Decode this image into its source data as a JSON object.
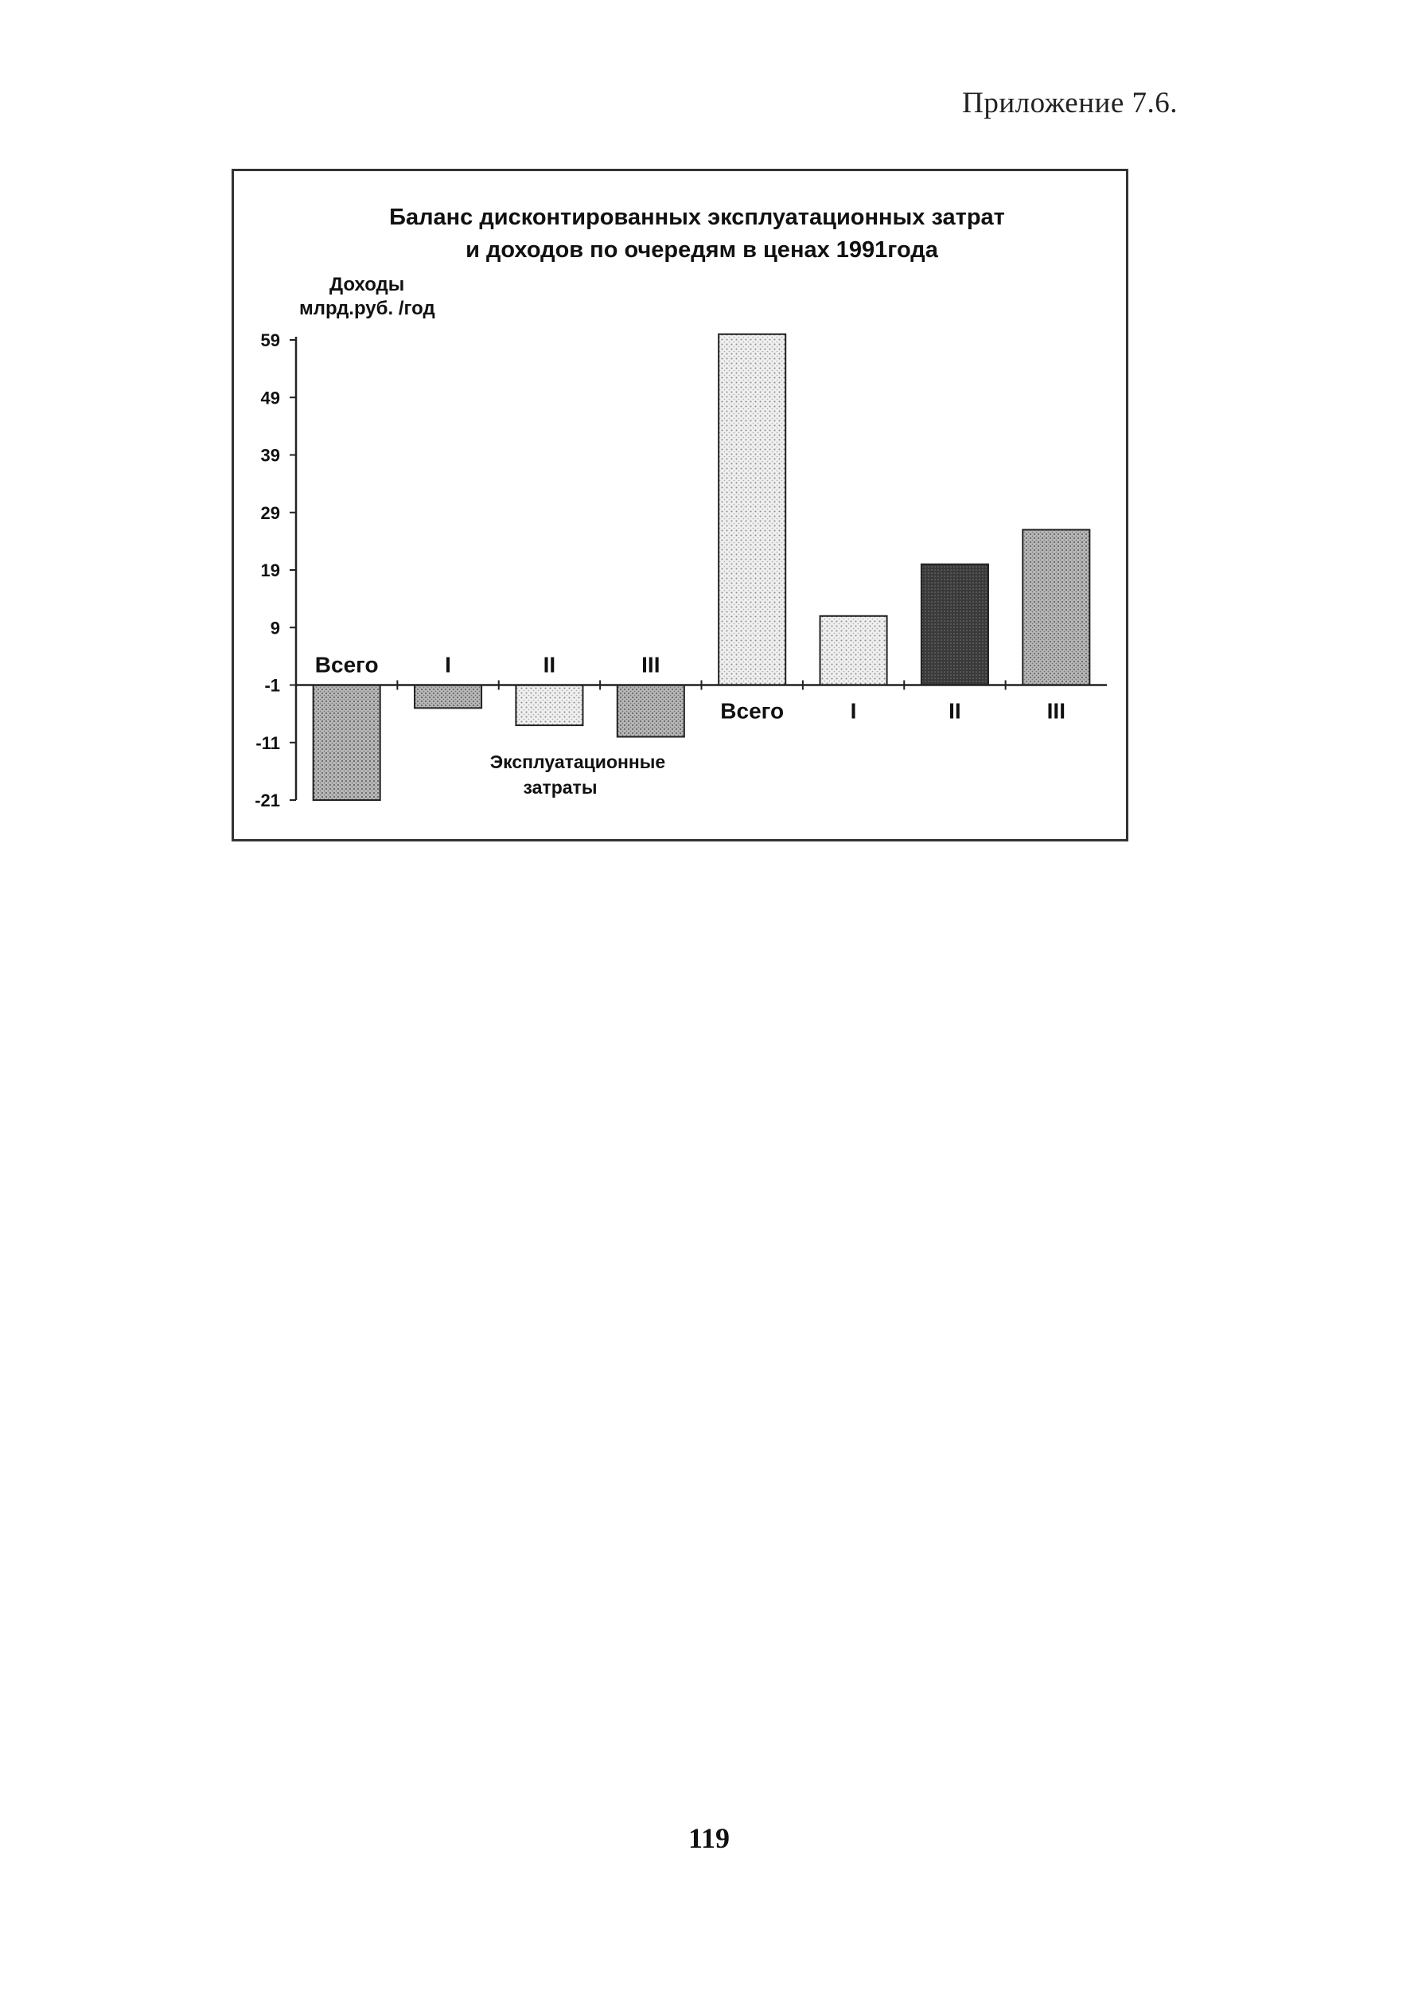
{
  "page": {
    "appendix_label": "Приложение 7.6.",
    "page_number": "119"
  },
  "chart_data": {
    "type": "bar",
    "title_line1": "Баланс дисконтированных эксплуатационных затрат",
    "title_line2": "и доходов по очередям в ценах 1991года",
    "ylabel_line1": "Доходы",
    "ylabel_line2": "млрд.руб. /год",
    "negative_group_label_line1": "Эксплуатационные",
    "negative_group_label_line2": "затраты",
    "ylim": [
      -21,
      59
    ],
    "yticks": [
      "59",
      "49",
      "39",
      "29",
      "19",
      "9",
      "-1",
      "-11",
      "-21"
    ],
    "ytick_values": [
      59,
      49,
      39,
      29,
      19,
      9,
      -1,
      -11,
      -21
    ],
    "baseline": -1,
    "categories": [
      "Всего",
      "I",
      "II",
      "III",
      "Всего",
      "I",
      "II",
      "III"
    ],
    "values": [
      -21,
      -5,
      -8,
      -10,
      60,
      11,
      20,
      26
    ],
    "label_position": [
      "above",
      "above",
      "above",
      "above",
      "below",
      "below",
      "below",
      "below"
    ],
    "colors": {
      "axis": "#222222",
      "bar_light": "#d9d9d9",
      "bar_medium": "#9a9a9a",
      "bar_dark": "#3a3a3a"
    },
    "bar_shades": [
      "medium",
      "medium",
      "light",
      "medium",
      "light",
      "light",
      "dark",
      "medium"
    ]
  }
}
